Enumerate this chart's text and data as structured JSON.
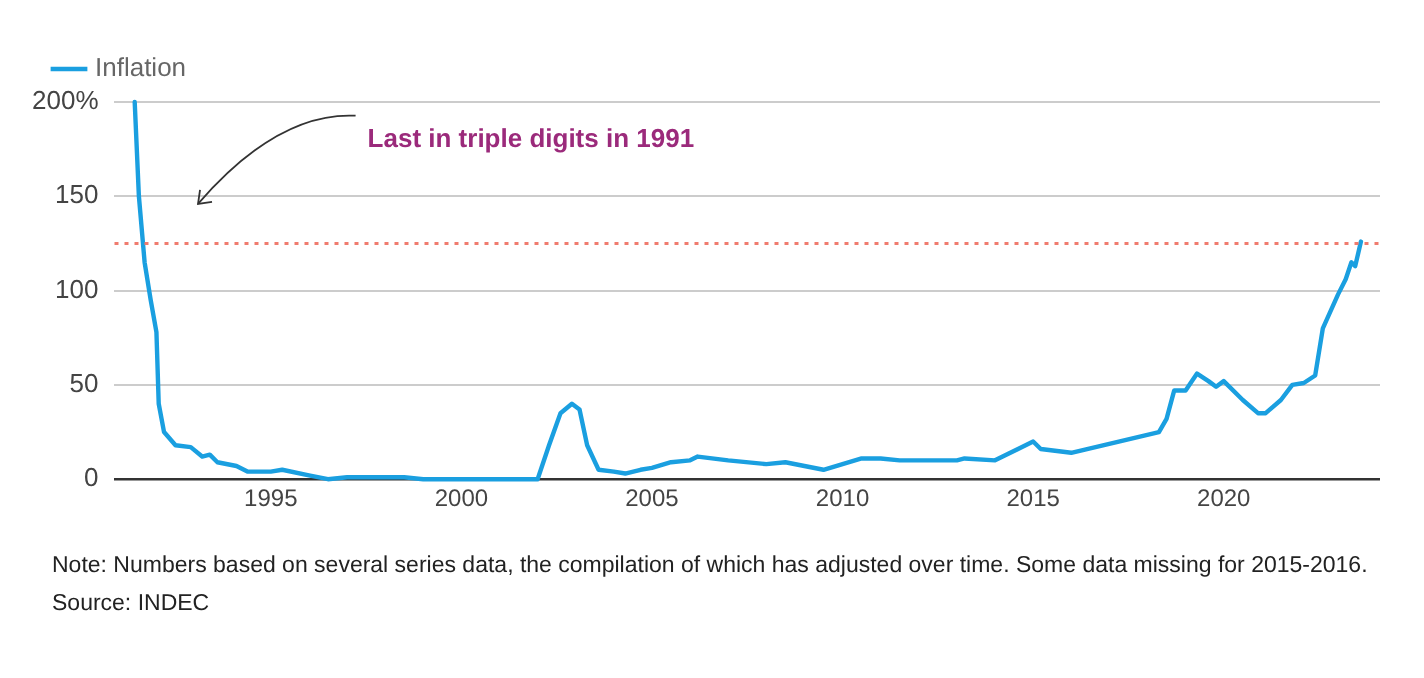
{
  "chart_data": {
    "type": "line",
    "xlim": [
      1990.9,
      2024.1
    ],
    "xticks": [
      1995,
      2000,
      2005,
      2010,
      2015,
      2020
    ],
    "ylim": [
      0,
      200
    ],
    "yticks": [
      0,
      50,
      100,
      150,
      {
        "value": 200,
        "label": "200%"
      }
    ],
    "grid": "y",
    "legend": "top left",
    "marker": "none",
    "line_style": "solid",
    "annotations": [
      "Last in triple digits in 1991",
      "Note: Numbers based on several series data, the compilation of which has adjusted over time. Some data missing for 2015-2016.",
      "Source: INDEC"
    ],
    "ref_lines": [
      {
        "axis": "y",
        "value": 125,
        "color": "#f07b6e",
        "line_style": "dotted"
      }
    ],
    "series": [
      {
        "name": "Inflation",
        "color": "#1a9fe0",
        "x": [
          1991.43,
          1991.54,
          1991.69,
          1991.85,
          1992.0,
          1992.06,
          1992.2,
          1992.5,
          1992.9,
          1993.2,
          1993.4,
          1993.6,
          1994.1,
          1994.4,
          1995,
          1995.3,
          1996,
          1996.5,
          1997,
          1998,
          1998.5,
          1999,
          1999.5,
          2000,
          2001,
          2001.3,
          2001.6,
          2002,
          2002.3,
          2002.6,
          2002.9,
          2003.1,
          2003.3,
          2003.6,
          2004,
          2004.3,
          2004.7,
          2005,
          2005.5,
          2006,
          2006.2,
          2007,
          2008,
          2008.5,
          2009,
          2009.5,
          2010,
          2010.5,
          2011,
          2011.5,
          2013,
          2013.2,
          2014,
          2015,
          2015.2,
          2016,
          2018.3,
          2018.5,
          2018.7,
          2019,
          2019.3,
          2019.6,
          2019.8,
          2020,
          2020.5,
          2020.9,
          2021.1,
          2021.5,
          2021.8,
          2022.1,
          2022.4,
          2022.6,
          2023.0,
          2023.2,
          2023.35,
          2023.45,
          2023.6
        ],
        "values": [
          200,
          150,
          115,
          95,
          78,
          40,
          25,
          18,
          17,
          12,
          13,
          9,
          7,
          4,
          4,
          5,
          2,
          0,
          1,
          1,
          1,
          0,
          0,
          0,
          0,
          0,
          0,
          0,
          18,
          35,
          40,
          37,
          18,
          5,
          4,
          3,
          5,
          6,
          9,
          10,
          12,
          10,
          8,
          9,
          7,
          5,
          8,
          11,
          11,
          10,
          10,
          11,
          10,
          20,
          16,
          14,
          25,
          32,
          47,
          47,
          56,
          52,
          49,
          52,
          42,
          35,
          35,
          42,
          50,
          51,
          55,
          80,
          98,
          106,
          115,
          113,
          126
        ]
      }
    ]
  }
}
